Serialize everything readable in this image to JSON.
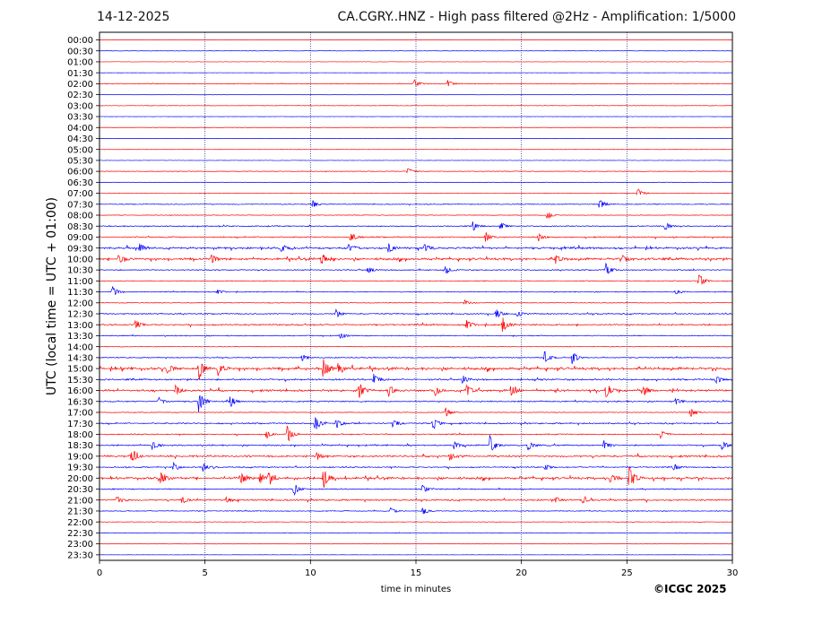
{
  "header": {
    "date": "14-12-2025",
    "title": "CA.CGRY..HNZ - High pass filtered @2Hz - Amplification: 1/5000"
  },
  "credit": "©ICGC 2025",
  "chart_data": {
    "type": "line",
    "title": "CA.CGRY..HNZ - High pass filtered @2Hz - Amplification: 1/5000",
    "xlabel": "time in minutes",
    "ylabel": "UTC (local time = UTC + 01:00)",
    "xlim": [
      0,
      30
    ],
    "x_ticks": [
      "0",
      "5",
      "10",
      "15",
      "20",
      "25",
      "30"
    ],
    "x_gridlines": [
      5,
      10,
      15,
      20,
      25
    ],
    "grid": "vertical dotted",
    "rows": [
      "00:00",
      "00:30",
      "01:00",
      "01:30",
      "02:00",
      "02:30",
      "03:00",
      "03:30",
      "04:00",
      "04:30",
      "05:00",
      "05:30",
      "06:00",
      "06:30",
      "07:00",
      "07:30",
      "08:00",
      "08:30",
      "09:00",
      "09:30",
      "10:00",
      "10:30",
      "11:00",
      "11:30",
      "12:00",
      "12:30",
      "13:00",
      "13:30",
      "14:00",
      "14:30",
      "15:00",
      "15:30",
      "16:00",
      "16:30",
      "17:00",
      "17:30",
      "18:00",
      "18:30",
      "19:00",
      "19:30",
      "20:00",
      "20:30",
      "21:00",
      "21:30",
      "22:00",
      "22:30",
      "23:00",
      "23:30"
    ],
    "trace_colors": [
      "#ff0000",
      "#0000ff"
    ],
    "activity": [
      0.02,
      0.05,
      0.0,
      0.0,
      0.15,
      0.0,
      0.05,
      0.0,
      0.0,
      0.0,
      0.05,
      0.0,
      0.1,
      0.0,
      0.1,
      0.2,
      0.1,
      0.3,
      0.35,
      0.6,
      0.7,
      0.3,
      0.15,
      0.2,
      0.15,
      0.35,
      0.45,
      0.25,
      0.15,
      0.25,
      0.8,
      0.5,
      0.65,
      0.35,
      0.15,
      0.4,
      0.3,
      0.4,
      0.6,
      0.35,
      0.7,
      0.3,
      0.45,
      0.2,
      0.08,
      0.12,
      0.02,
      0.0
    ],
    "events": [
      {
        "row": "02:00",
        "t": [
          14.9,
          16.5
        ],
        "amp": [
          0.5,
          0.4
        ]
      },
      {
        "row": "06:00",
        "t": [
          14.6
        ],
        "amp": [
          0.4
        ]
      },
      {
        "row": "07:00",
        "t": [
          25.5
        ],
        "amp": [
          0.6
        ]
      },
      {
        "row": "07:30",
        "t": [
          10.1,
          23.7
        ],
        "amp": [
          0.4,
          0.7
        ]
      },
      {
        "row": "08:00",
        "t": [
          21.2
        ],
        "amp": [
          0.5
        ]
      },
      {
        "row": "08:30",
        "t": [
          17.7,
          19.0,
          26.8
        ],
        "amp": [
          0.5,
          0.5,
          0.5
        ]
      },
      {
        "row": "09:00",
        "t": [
          11.9,
          18.3,
          20.8
        ],
        "amp": [
          0.7,
          0.6,
          0.5
        ]
      },
      {
        "row": "09:30",
        "t": [
          1.9,
          8.6,
          11.8,
          13.7,
          15.4
        ],
        "amp": [
          0.6,
          0.5,
          0.5,
          0.7,
          0.6
        ]
      },
      {
        "row": "10:00",
        "t": [
          0.9,
          5.3,
          10.5,
          21.6,
          24.8
        ],
        "amp": [
          0.6,
          0.6,
          0.6,
          0.5,
          0.5
        ]
      },
      {
        "row": "10:30",
        "t": [
          12.7,
          16.4,
          24.0
        ],
        "amp": [
          0.4,
          0.5,
          0.8
        ]
      },
      {
        "row": "11:00",
        "t": [
          28.4
        ],
        "amp": [
          0.9
        ]
      },
      {
        "row": "11:30",
        "t": [
          0.6,
          5.6,
          27.3
        ],
        "amp": [
          0.7,
          0.3,
          0.3
        ]
      },
      {
        "row": "12:00",
        "t": [
          17.3
        ],
        "amp": [
          0.3
        ]
      },
      {
        "row": "12:30",
        "t": [
          11.2,
          18.8,
          19.8
        ],
        "amp": [
          0.5,
          0.6,
          0.4
        ]
      },
      {
        "row": "13:00",
        "t": [
          1.7,
          17.4,
          19.1
        ],
        "amp": [
          0.6,
          0.6,
          0.9
        ]
      },
      {
        "row": "13:30",
        "t": [
          11.4
        ],
        "amp": [
          0.4
        ]
      },
      {
        "row": "14:30",
        "t": [
          9.6,
          21.1,
          22.4
        ],
        "amp": [
          0.4,
          0.8,
          0.8
        ]
      },
      {
        "row": "15:00",
        "t": [
          3.2,
          4.7,
          5.6,
          10.6,
          11.3
        ],
        "amp": [
          0.7,
          1.5,
          0.6,
          1.3,
          0.6
        ]
      },
      {
        "row": "15:30",
        "t": [
          13.0,
          17.2,
          29.2
        ],
        "amp": [
          0.6,
          0.5,
          0.5
        ]
      },
      {
        "row": "16:00",
        "t": [
          3.6,
          12.3,
          13.7,
          15.9,
          17.4,
          19.5,
          24.0,
          25.8
        ],
        "amp": [
          0.6,
          0.9,
          0.7,
          0.6,
          0.7,
          0.7,
          0.9,
          0.6
        ]
      },
      {
        "row": "16:30",
        "t": [
          2.8,
          4.7,
          6.2,
          27.3
        ],
        "amp": [
          0.5,
          1.3,
          0.7,
          0.4
        ]
      },
      {
        "row": "17:00",
        "t": [
          16.4,
          28.0
        ],
        "amp": [
          0.5,
          0.6
        ]
      },
      {
        "row": "17:30",
        "t": [
          10.2,
          11.2,
          13.9,
          15.8
        ],
        "amp": [
          1.0,
          0.6,
          0.5,
          0.8
        ]
      },
      {
        "row": "18:00",
        "t": [
          7.9,
          8.9,
          26.6,
          30.0
        ],
        "amp": [
          0.5,
          1.1,
          0.5,
          0.5
        ]
      },
      {
        "row": "18:30",
        "t": [
          2.5,
          16.8,
          18.5,
          20.3,
          23.9,
          29.5
        ],
        "amp": [
          0.6,
          0.5,
          1.2,
          0.6,
          0.6,
          0.6
        ]
      },
      {
        "row": "19:00",
        "t": [
          1.5,
          10.3,
          16.6
        ],
        "amp": [
          0.9,
          0.5,
          0.4
        ]
      },
      {
        "row": "19:30",
        "t": [
          3.5,
          4.9,
          21.1,
          27.2
        ],
        "amp": [
          0.5,
          0.5,
          0.4,
          0.4
        ]
      },
      {
        "row": "20:00",
        "t": [
          2.9,
          6.7,
          7.6,
          8.0,
          10.6,
          24.2,
          25.1
        ],
        "amp": [
          0.7,
          0.7,
          0.6,
          0.6,
          1.3,
          0.6,
          1.5
        ]
      },
      {
        "row": "20:30",
        "t": [
          9.2,
          15.3
        ],
        "amp": [
          0.8,
          0.5
        ]
      },
      {
        "row": "21:00",
        "t": [
          0.8,
          3.9,
          6.0,
          21.6,
          22.9
        ],
        "amp": [
          0.5,
          0.5,
          0.4,
          0.4,
          0.4
        ]
      },
      {
        "row": "21:30",
        "t": [
          13.8,
          15.3
        ],
        "amp": [
          0.4,
          0.5
        ]
      }
    ]
  }
}
